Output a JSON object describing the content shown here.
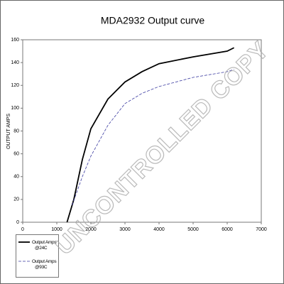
{
  "chart_data": {
    "type": "line",
    "title": "MDA2932 Output curve",
    "y_label": "OUTPUT AMPS",
    "watermark": "UNCONTROLLED COPY",
    "xlim": [
      0,
      7000
    ],
    "xticks": [
      0,
      1000,
      2000,
      3000,
      4000,
      5000,
      6000,
      7000
    ],
    "ylim": [
      0,
      160
    ],
    "yticks": [
      0,
      20,
      40,
      60,
      80,
      100,
      120,
      140,
      160
    ],
    "series": [
      {
        "name": "Output Amps\n@24C",
        "color": "#000000",
        "dash": false,
        "x": [
          1300,
          1500,
          1750,
          2000,
          2500,
          3000,
          3500,
          4000,
          5000,
          6000,
          6200
        ],
        "values": [
          0,
          20,
          55,
          82,
          108,
          123,
          132,
          139,
          145,
          150,
          153
        ]
      },
      {
        "name": "Output Amps\n@93C",
        "color": "#3a3aa0",
        "dash": true,
        "x": [
          1450,
          1750,
          2000,
          2500,
          3000,
          3500,
          4000,
          5000,
          6000,
          6200
        ],
        "values": [
          15,
          40,
          58,
          85,
          104,
          113,
          119,
          127,
          132,
          134
        ]
      }
    ]
  }
}
